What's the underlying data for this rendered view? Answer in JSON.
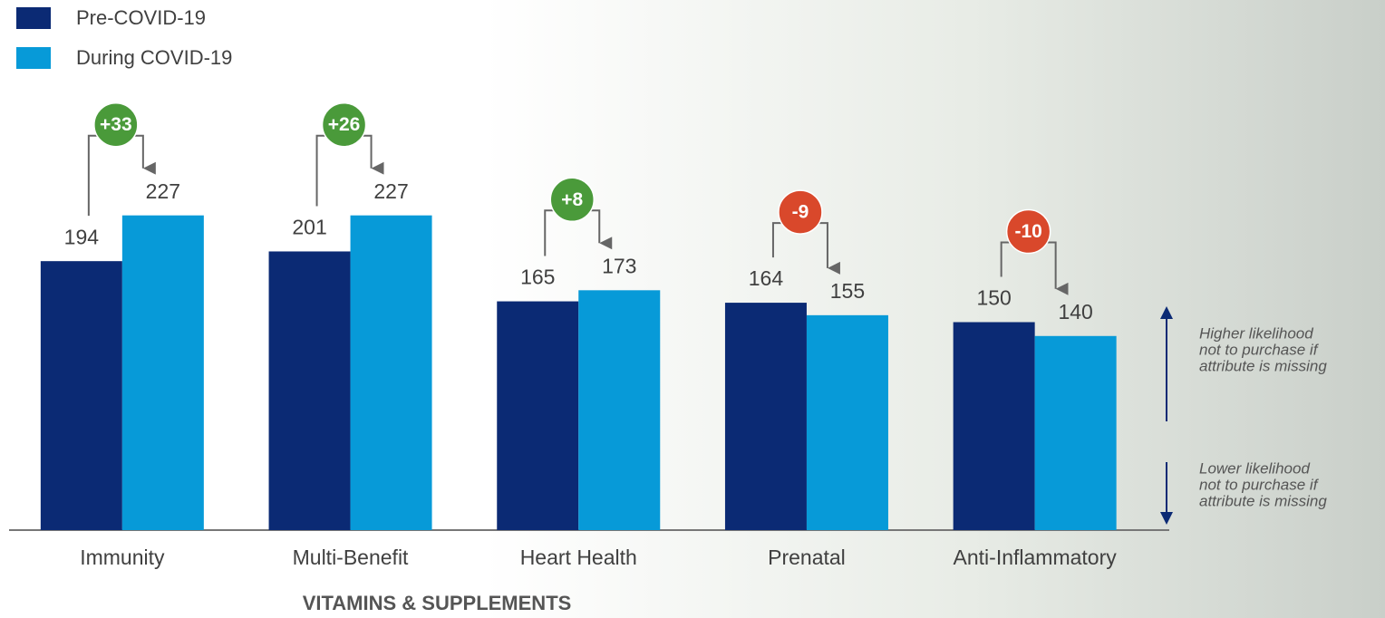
{
  "chart_data": {
    "type": "bar",
    "x_title": "VITAMINS & SUPPLEMENTS",
    "categories": [
      "Immunity",
      "Multi-Benefit",
      "Heart Health",
      "Prenatal",
      "Anti-Inflammatory"
    ],
    "series": [
      {
        "name": "Pre-COVID-19",
        "color": "#0b2a74",
        "values": [
          194,
          201,
          165,
          164,
          150
        ]
      },
      {
        "name": "During COVID-19",
        "color": "#079ad8",
        "values": [
          227,
          227,
          173,
          155,
          140
        ]
      }
    ],
    "changes": [
      {
        "value": 33,
        "label": "+33"
      },
      {
        "value": 26,
        "label": "+26"
      },
      {
        "value": 8,
        "label": "+8"
      },
      {
        "value": -9,
        "label": "-9"
      },
      {
        "value": -10,
        "label": "-10"
      }
    ],
    "positive_color": "#4a9a3a",
    "negative_color": "#d9482b",
    "ylim": [
      0,
      300
    ],
    "annotations": [
      [
        "Higher likelihood",
        "not to purchase if",
        "attribute is missing"
      ],
      [
        "Lower likelihood",
        "not to purchase if",
        "attribute is missing"
      ]
    ]
  }
}
